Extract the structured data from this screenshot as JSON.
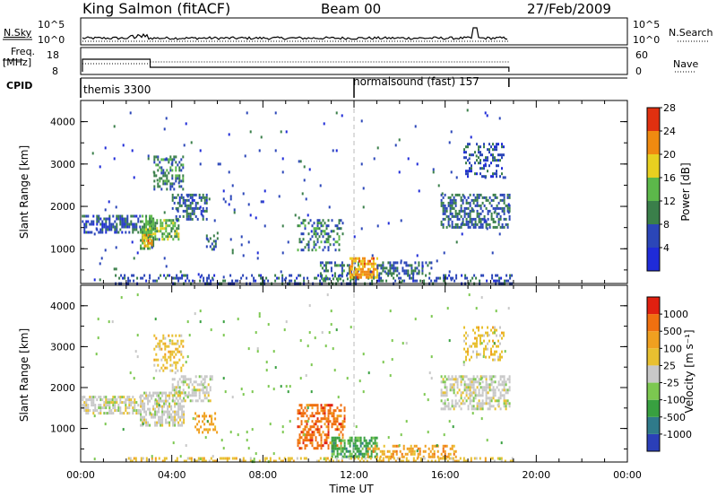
{
  "header": {
    "station": "King Salmon (fitACF)",
    "beam": "Beam 00",
    "date": "27/Feb/2009"
  },
  "left_labels": {
    "nsky": "N.Sky",
    "nsky_tick_top": "10^5",
    "nsky_tick_bottom": "10^0",
    "freq_line1": "Freq.",
    "freq_line2": "[MHz]",
    "freq_tick_top": "18",
    "freq_tick_bottom": "8",
    "cpid": "CPID"
  },
  "right_labels": {
    "nsearch": "N.Search",
    "nsearch_tick_top": "10^5",
    "nsearch_tick_bottom": "10^0",
    "nave": "Nave",
    "nave_tick_top": "60",
    "nave_tick_bottom": "0"
  },
  "cpid_programs": [
    {
      "label": "themis 3300",
      "start_h": 0,
      "end_h": 12
    },
    {
      "label": "normalsound (fast) 157",
      "start_h": 12,
      "end_h": 18.8
    }
  ],
  "colors": {
    "power_scale": [
      "#1f2bd8",
      "#2b46b8",
      "#3a7f4a",
      "#5cb84a",
      "#e8d020",
      "#f08a10",
      "#e03010"
    ],
    "velocity_scale": [
      "#2b3fb8",
      "#2f7a8a",
      "#38a040",
      "#7cc850",
      "#c8c8c8",
      "#e8c030",
      "#f0a020",
      "#f07010",
      "#e02010"
    ],
    "grid_dash": "#bbbbbb"
  },
  "chart_data": [
    {
      "type": "heatmap",
      "name": "power",
      "ylabel": "Slant Range [km]",
      "ylim": [
        180,
        4500
      ],
      "yticks": [
        "1000",
        "2000",
        "3000",
        "4000"
      ],
      "xlim": [
        0,
        24
      ],
      "colorbar_label": "Power [dB]",
      "colorbar_ticks": [
        "4",
        "8",
        "12",
        "16",
        "20",
        "24",
        "28"
      ],
      "clim": [
        0,
        32
      ],
      "regions": [
        {
          "x": [
            0.05,
            2.6
          ],
          "y": [
            1400,
            1800
          ],
          "v": 6,
          "density": 0.55
        },
        {
          "x": [
            2.6,
            3.2
          ],
          "y": [
            1000,
            1800
          ],
          "v": 14,
          "density": 0.7
        },
        {
          "x": [
            2.7,
            3.1
          ],
          "y": [
            1050,
            1350
          ],
          "v": 26,
          "density": 0.7
        },
        {
          "x": [
            3.0,
            4.3
          ],
          "y": [
            1200,
            1700
          ],
          "v": 16,
          "density": 0.6
        },
        {
          "x": [
            3.2,
            4.5
          ],
          "y": [
            2400,
            3200
          ],
          "v": 10,
          "density": 0.4
        },
        {
          "x": [
            4.0,
            5.5
          ],
          "y": [
            1700,
            2300
          ],
          "v": 7,
          "density": 0.45
        },
        {
          "x": [
            5.5,
            6.0
          ],
          "y": [
            1000,
            1400
          ],
          "v": 7,
          "density": 0.35
        },
        {
          "x": [
            1.5,
            19.0
          ],
          "y": [
            200,
            400
          ],
          "v": 6,
          "density": 0.3
        },
        {
          "x": [
            9.5,
            11.5
          ],
          "y": [
            1000,
            1700
          ],
          "v": 10,
          "density": 0.35
        },
        {
          "x": [
            10.5,
            12.2
          ],
          "y": [
            300,
            700
          ],
          "v": 9,
          "density": 0.45
        },
        {
          "x": [
            11.8,
            13.0
          ],
          "y": [
            300,
            800
          ],
          "v": 25,
          "density": 0.75
        },
        {
          "x": [
            13.0,
            15.5
          ],
          "y": [
            400,
            700
          ],
          "v": 8,
          "density": 0.5
        },
        {
          "x": [
            15.8,
            18.8
          ],
          "y": [
            1500,
            2300
          ],
          "v": 8,
          "density": 0.5
        },
        {
          "x": [
            16.8,
            18.6
          ],
          "y": [
            2700,
            3500
          ],
          "v": 6,
          "density": 0.35
        },
        {
          "x": [
            0.5,
            18.8
          ],
          "y": [
            200,
            4300
          ],
          "v": 5,
          "density": 0.012
        }
      ]
    },
    {
      "type": "heatmap",
      "name": "velocity",
      "ylabel": "Slant Range [km]",
      "ylim": [
        180,
        4500
      ],
      "yticks": [
        "1000",
        "2000",
        "3000",
        "4000"
      ],
      "xlim": [
        0,
        24
      ],
      "xlabel": "Time UT",
      "xticks": [
        "00:00",
        "04:00",
        "08:00",
        "12:00",
        "16:00",
        "20:00",
        "00:00"
      ],
      "colorbar_label": "Velocity [m s⁻¹]",
      "colorbar_ticks": [
        "1000",
        "500",
        "100",
        "25",
        "-25",
        "-100",
        "-500",
        "-1000"
      ],
      "regions": [
        {
          "x": [
            0.05,
            2.6
          ],
          "y": [
            1400,
            1800
          ],
          "v": 4,
          "density": 0.6
        },
        {
          "x": [
            2.6,
            4.5
          ],
          "y": [
            1100,
            1900
          ],
          "v": 4,
          "density": 0.6
        },
        {
          "x": [
            3.2,
            4.5
          ],
          "y": [
            2400,
            3300
          ],
          "v": 5,
          "density": 0.35
        },
        {
          "x": [
            4.0,
            5.8
          ],
          "y": [
            1700,
            2300
          ],
          "v": 4,
          "density": 0.5
        },
        {
          "x": [
            5.0,
            6.0
          ],
          "y": [
            900,
            1400
          ],
          "v": 6,
          "density": 0.35
        },
        {
          "x": [
            9.5,
            11.6
          ],
          "y": [
            500,
            1600
          ],
          "v": 7,
          "density": 0.5
        },
        {
          "x": [
            11.0,
            13.0
          ],
          "y": [
            300,
            800
          ],
          "v": 2,
          "density": 0.65
        },
        {
          "x": [
            12.5,
            16.5
          ],
          "y": [
            300,
            600
          ],
          "v": 6,
          "density": 0.45
        },
        {
          "x": [
            2.0,
            19.0
          ],
          "y": [
            180,
            300
          ],
          "v": 5,
          "density": 0.4
        },
        {
          "x": [
            15.8,
            18.8
          ],
          "y": [
            1500,
            2300
          ],
          "v": 4,
          "density": 0.55
        },
        {
          "x": [
            16.8,
            18.6
          ],
          "y": [
            2700,
            3500
          ],
          "v": 5,
          "density": 0.35
        },
        {
          "x": [
            0.5,
            18.8
          ],
          "y": [
            200,
            4300
          ],
          "v": 3,
          "density": 0.012
        }
      ]
    }
  ]
}
